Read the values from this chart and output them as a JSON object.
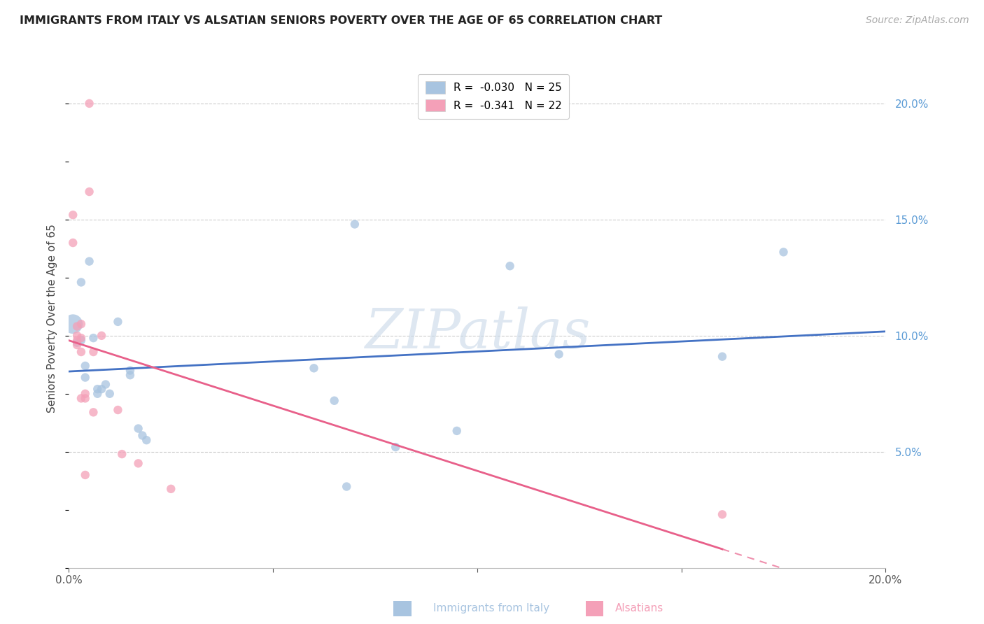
{
  "title": "IMMIGRANTS FROM ITALY VS ALSATIAN SENIORS POVERTY OVER THE AGE OF 65 CORRELATION CHART",
  "source": "Source: ZipAtlas.com",
  "ylabel": "Seniors Poverty Over the Age of 65",
  "x_min": 0.0,
  "x_max": 0.2,
  "y_min": 0.0,
  "y_max": 0.215,
  "watermark": "ZIPatlas",
  "italy_scatter": [
    [
      0.001,
      0.105
    ],
    [
      0.002,
      0.097
    ],
    [
      0.003,
      0.098
    ],
    [
      0.003,
      0.123
    ],
    [
      0.004,
      0.087
    ],
    [
      0.004,
      0.082
    ],
    [
      0.005,
      0.132
    ],
    [
      0.006,
      0.099
    ],
    [
      0.007,
      0.075
    ],
    [
      0.007,
      0.077
    ],
    [
      0.008,
      0.077
    ],
    [
      0.009,
      0.079
    ],
    [
      0.01,
      0.075
    ],
    [
      0.012,
      0.106
    ],
    [
      0.015,
      0.085
    ],
    [
      0.015,
      0.083
    ],
    [
      0.017,
      0.06
    ],
    [
      0.018,
      0.057
    ],
    [
      0.019,
      0.055
    ],
    [
      0.06,
      0.086
    ],
    [
      0.065,
      0.072
    ],
    [
      0.068,
      0.035
    ],
    [
      0.07,
      0.148
    ],
    [
      0.08,
      0.052
    ],
    [
      0.095,
      0.059
    ],
    [
      0.108,
      0.13
    ],
    [
      0.12,
      0.092
    ],
    [
      0.16,
      0.091
    ],
    [
      0.175,
      0.136
    ]
  ],
  "italy_scatter_sizes": [
    400,
    80,
    80,
    80,
    80,
    80,
    80,
    80,
    80,
    80,
    80,
    80,
    80,
    80,
    80,
    80,
    80,
    80,
    80,
    80,
    80,
    80,
    80,
    80,
    80,
    80,
    80,
    80,
    80
  ],
  "alsatian_scatter": [
    [
      0.001,
      0.152
    ],
    [
      0.001,
      0.14
    ],
    [
      0.002,
      0.104
    ],
    [
      0.002,
      0.1
    ],
    [
      0.002,
      0.098
    ],
    [
      0.002,
      0.096
    ],
    [
      0.003,
      0.105
    ],
    [
      0.003,
      0.099
    ],
    [
      0.003,
      0.093
    ],
    [
      0.003,
      0.073
    ],
    [
      0.004,
      0.075
    ],
    [
      0.004,
      0.073
    ],
    [
      0.004,
      0.04
    ],
    [
      0.005,
      0.2
    ],
    [
      0.005,
      0.162
    ],
    [
      0.006,
      0.093
    ],
    [
      0.006,
      0.067
    ],
    [
      0.008,
      0.1
    ],
    [
      0.012,
      0.068
    ],
    [
      0.013,
      0.049
    ],
    [
      0.017,
      0.045
    ],
    [
      0.025,
      0.034
    ],
    [
      0.16,
      0.023
    ]
  ],
  "italy_line_color": "#4472c4",
  "alsatian_line_color": "#e8608a",
  "italy_scatter_color": "#a8c4e0",
  "alsatian_scatter_color": "#f4a0b8",
  "background_color": "#ffffff",
  "grid_color": "#cccccc",
  "axis_color": "#5b9bd5",
  "title_color": "#222222",
  "source_color": "#aaaaaa"
}
